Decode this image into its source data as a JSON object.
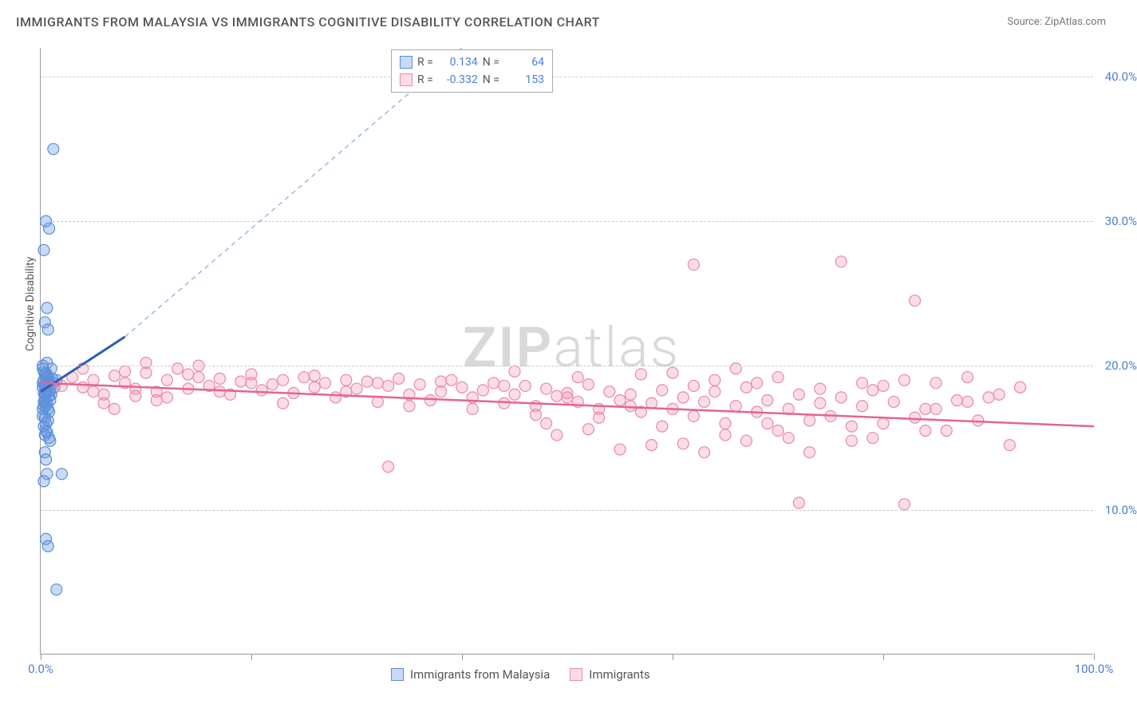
{
  "title": "IMMIGRANTS FROM MALAYSIA VS IMMIGRANTS COGNITIVE DISABILITY CORRELATION CHART",
  "source": "Source: ZipAtlas.com",
  "ylabel": "Cognitive Disability",
  "watermark_zip": "ZIP",
  "watermark_atlas": "atlas",
  "chart": {
    "type": "scatter",
    "xlim": [
      0,
      100
    ],
    "ylim": [
      0,
      42
    ],
    "yticks": [
      10,
      20,
      30,
      40
    ],
    "ytick_labels": [
      "10.0%",
      "20.0%",
      "30.0%",
      "40.0%"
    ],
    "xticks": [
      0,
      20,
      40,
      60,
      80,
      100
    ],
    "xtick_label_left": "0.0%",
    "xtick_label_right": "100.0%",
    "background": "#ffffff",
    "grid_color": "#cccccc",
    "series": [
      {
        "name": "Immigrants from Malaysia",
        "color_fill": "rgba(100,150,230,0.35)",
        "color_stroke": "#5b8ed6",
        "line_color": "#2c5fb3",
        "line_dash_color": "#9bb8e0",
        "R": 0.134,
        "N": 64,
        "trend": {
          "x1": 0,
          "y1": 18.2,
          "x2": 8,
          "y2": 22
        },
        "trend_ext": {
          "x1": 8,
          "y1": 22,
          "x2": 40,
          "y2": 42
        },
        "points": [
          [
            0.2,
            18.5
          ],
          [
            0.3,
            19.0
          ],
          [
            0.4,
            17.8
          ],
          [
            0.5,
            18.2
          ],
          [
            0.6,
            19.3
          ],
          [
            0.3,
            17.5
          ],
          [
            0.7,
            18.8
          ],
          [
            0.2,
            17.0
          ],
          [
            0.5,
            19.5
          ],
          [
            0.4,
            18.0
          ],
          [
            0.8,
            18.9
          ],
          [
            0.3,
            17.2
          ],
          [
            0.6,
            19.0
          ],
          [
            0.5,
            18.4
          ],
          [
            0.4,
            17.6
          ],
          [
            0.7,
            19.2
          ],
          [
            0.3,
            18.1
          ],
          [
            0.6,
            18.6
          ],
          [
            1.2,
            35.0
          ],
          [
            0.5,
            30.0
          ],
          [
            0.8,
            29.5
          ],
          [
            0.3,
            28.0
          ],
          [
            0.6,
            24.0
          ],
          [
            0.4,
            23.0
          ],
          [
            0.7,
            22.5
          ],
          [
            1.0,
            19.8
          ],
          [
            0.2,
            16.5
          ],
          [
            0.5,
            15.5
          ],
          [
            0.8,
            15.0
          ],
          [
            0.4,
            14.0
          ],
          [
            0.6,
            12.5
          ],
          [
            2.0,
            12.5
          ],
          [
            0.3,
            12.0
          ],
          [
            0.5,
            8.0
          ],
          [
            0.7,
            7.5
          ],
          [
            1.5,
            4.5
          ],
          [
            0.9,
            18.3
          ],
          [
            1.1,
            19.1
          ],
          [
            0.4,
            19.4
          ],
          [
            0.2,
            18.8
          ],
          [
            0.8,
            17.9
          ],
          [
            0.6,
            17.4
          ],
          [
            1.0,
            18.0
          ],
          [
            0.5,
            16.0
          ],
          [
            0.3,
            15.8
          ],
          [
            0.7,
            16.2
          ],
          [
            0.4,
            15.2
          ],
          [
            0.9,
            14.8
          ],
          [
            0.2,
            19.8
          ],
          [
            0.6,
            20.2
          ],
          [
            0.5,
            17.2
          ],
          [
            0.8,
            16.8
          ],
          [
            0.3,
            19.6
          ],
          [
            0.7,
            18.2
          ],
          [
            1.3,
            18.5
          ],
          [
            1.5,
            19.0
          ],
          [
            0.4,
            16.4
          ],
          [
            0.6,
            15.4
          ],
          [
            0.2,
            20.0
          ],
          [
            0.5,
            13.5
          ],
          [
            0.9,
            17.6
          ],
          [
            1.2,
            18.8
          ],
          [
            0.4,
            18.6
          ],
          [
            0.7,
            17.0
          ]
        ]
      },
      {
        "name": "Immigrants",
        "color_fill": "rgba(245,140,170,0.30)",
        "color_stroke": "#e88aa8",
        "line_color": "#e5648f",
        "R": -0.332,
        "N": 153,
        "trend": {
          "x1": 0,
          "y1": 18.8,
          "x2": 100,
          "y2": 15.8
        },
        "points": [
          [
            3,
            19.2
          ],
          [
            4,
            18.5
          ],
          [
            5,
            19.0
          ],
          [
            6,
            18.0
          ],
          [
            7,
            19.3
          ],
          [
            8,
            18.8
          ],
          [
            9,
            17.9
          ],
          [
            10,
            19.5
          ],
          [
            11,
            18.2
          ],
          [
            12,
            19.0
          ],
          [
            13,
            19.8
          ],
          [
            14,
            18.4
          ],
          [
            15,
            19.2
          ],
          [
            16,
            18.6
          ],
          [
            17,
            19.1
          ],
          [
            18,
            18.0
          ],
          [
            19,
            18.9
          ],
          [
            20,
            19.4
          ],
          [
            21,
            18.3
          ],
          [
            22,
            18.7
          ],
          [
            23,
            19.0
          ],
          [
            24,
            18.1
          ],
          [
            25,
            19.2
          ],
          [
            26,
            18.5
          ],
          [
            27,
            18.8
          ],
          [
            28,
            17.8
          ],
          [
            29,
            19.0
          ],
          [
            30,
            18.4
          ],
          [
            31,
            18.9
          ],
          [
            32,
            17.5
          ],
          [
            33,
            18.6
          ],
          [
            34,
            19.1
          ],
          [
            35,
            18.0
          ],
          [
            36,
            18.7
          ],
          [
            37,
            17.6
          ],
          [
            38,
            18.2
          ],
          [
            39,
            19.0
          ],
          [
            40,
            18.5
          ],
          [
            41,
            17.8
          ],
          [
            42,
            18.3
          ],
          [
            43,
            18.8
          ],
          [
            44,
            17.4
          ],
          [
            45,
            18.0
          ],
          [
            46,
            18.6
          ],
          [
            47,
            17.2
          ],
          [
            48,
            18.4
          ],
          [
            49,
            17.9
          ],
          [
            50,
            18.1
          ],
          [
            51,
            17.5
          ],
          [
            52,
            18.7
          ],
          [
            53,
            17.0
          ],
          [
            54,
            18.2
          ],
          [
            55,
            17.6
          ],
          [
            56,
            18.0
          ],
          [
            57,
            16.8
          ],
          [
            58,
            17.4
          ],
          [
            59,
            18.3
          ],
          [
            60,
            17.0
          ],
          [
            61,
            17.8
          ],
          [
            62,
            16.5
          ],
          [
            63,
            17.5
          ],
          [
            64,
            18.2
          ],
          [
            65,
            16.0
          ],
          [
            66,
            17.2
          ],
          [
            67,
            18.5
          ],
          [
            68,
            16.8
          ],
          [
            69,
            17.6
          ],
          [
            70,
            15.5
          ],
          [
            71,
            17.0
          ],
          [
            72,
            18.0
          ],
          [
            73,
            16.2
          ],
          [
            74,
            17.4
          ],
          [
            62,
            27.0
          ],
          [
            75,
            16.5
          ],
          [
            76,
            17.8
          ],
          [
            77,
            15.8
          ],
          [
            78,
            17.2
          ],
          [
            79,
            18.3
          ],
          [
            80,
            16.0
          ],
          [
            81,
            17.5
          ],
          [
            82,
            19.0
          ],
          [
            83,
            16.4
          ],
          [
            84,
            17.0
          ],
          [
            85,
            18.8
          ],
          [
            86,
            15.5
          ],
          [
            87,
            17.6
          ],
          [
            88,
            19.2
          ],
          [
            89,
            16.2
          ],
          [
            90,
            17.8
          ],
          [
            91,
            18.0
          ],
          [
            92,
            14.5
          ],
          [
            93,
            18.5
          ],
          [
            76,
            27.2
          ],
          [
            83,
            24.5
          ],
          [
            72,
            10.5
          ],
          [
            82,
            10.4
          ],
          [
            5,
            18.2
          ],
          [
            8,
            19.6
          ],
          [
            11,
            17.6
          ],
          [
            14,
            19.4
          ],
          [
            17,
            18.2
          ],
          [
            20,
            18.8
          ],
          [
            23,
            17.4
          ],
          [
            26,
            19.3
          ],
          [
            29,
            18.2
          ],
          [
            32,
            18.8
          ],
          [
            35,
            17.2
          ],
          [
            38,
            18.9
          ],
          [
            41,
            17.0
          ],
          [
            44,
            18.6
          ],
          [
            47,
            16.6
          ],
          [
            50,
            17.8
          ],
          [
            53,
            16.4
          ],
          [
            56,
            17.2
          ],
          [
            59,
            15.8
          ],
          [
            62,
            18.6
          ],
          [
            65,
            15.2
          ],
          [
            68,
            18.8
          ],
          [
            71,
            15.0
          ],
          [
            74,
            18.4
          ],
          [
            77,
            14.8
          ],
          [
            80,
            18.6
          ],
          [
            60,
            19.5
          ],
          [
            55,
            14.2
          ],
          [
            58,
            14.5
          ],
          [
            63,
            14.0
          ],
          [
            66,
            19.8
          ],
          [
            45,
            19.6
          ],
          [
            48,
            16.0
          ],
          [
            51,
            19.2
          ],
          [
            88,
            17.5
          ],
          [
            85,
            17.0
          ],
          [
            78,
            18.8
          ],
          [
            70,
            19.2
          ],
          [
            67,
            14.8
          ],
          [
            64,
            19.0
          ],
          [
            33,
            13.0
          ],
          [
            15,
            20.0
          ],
          [
            10,
            20.2
          ],
          [
            7,
            17.0
          ],
          [
            4,
            19.8
          ],
          [
            2,
            18.6
          ],
          [
            6,
            17.4
          ],
          [
            9,
            18.4
          ],
          [
            12,
            17.8
          ],
          [
            49,
            15.2
          ],
          [
            52,
            15.6
          ],
          [
            57,
            19.4
          ],
          [
            61,
            14.6
          ],
          [
            69,
            16.0
          ],
          [
            73,
            14.0
          ],
          [
            79,
            15.0
          ],
          [
            84,
            15.5
          ]
        ]
      }
    ]
  },
  "legend_labels": {
    "R": "R =",
    "N": "N ="
  }
}
